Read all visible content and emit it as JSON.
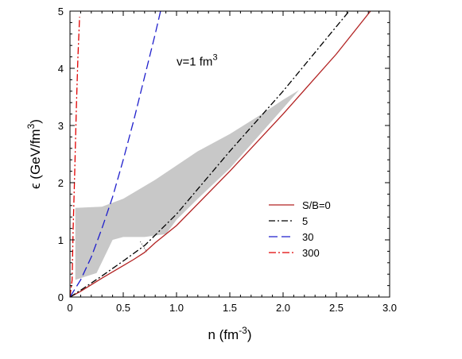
{
  "chart_data": {
    "type": "line",
    "xlabel": "n (fm",
    "xlabel_sup": "-3",
    "xlabel_end": ")",
    "ylabel": "ϵ (GeV/fm",
    "ylabel_sup": "3",
    "ylabel_end": ")",
    "xlim": [
      0,
      3.0
    ],
    "ylim": [
      0,
      5
    ],
    "x_ticks": [
      "0",
      "0.5",
      "1.0",
      "1.5",
      "2.0",
      "2.5",
      "3.0"
    ],
    "y_ticks": [
      "0",
      "1",
      "2",
      "3",
      "4",
      "5"
    ],
    "grid": false,
    "legend_position": "lower-right",
    "annotation": {
      "text": "v=1 fm",
      "sup": "3",
      "x": 1.0,
      "y": 4.05
    },
    "series": [
      {
        "name": "S/B=0",
        "color": "#b22222",
        "dash": "",
        "points": [
          [
            0,
            0
          ],
          [
            0.1,
            0.1
          ],
          [
            0.3,
            0.33
          ],
          [
            0.5,
            0.55
          ],
          [
            0.6,
            0.66
          ],
          [
            0.7,
            0.78
          ],
          [
            0.8,
            0.95
          ],
          [
            1.0,
            1.25
          ],
          [
            1.5,
            2.2
          ],
          [
            2.0,
            3.2
          ],
          [
            2.5,
            4.25
          ],
          [
            2.82,
            5.0
          ]
        ]
      },
      {
        "name": "5",
        "color": "#000000",
        "dash": "8,3,2,3",
        "points": [
          [
            0,
            0
          ],
          [
            0.1,
            0.12
          ],
          [
            0.3,
            0.37
          ],
          [
            0.5,
            0.63
          ],
          [
            0.7,
            0.9
          ],
          [
            1.0,
            1.45
          ],
          [
            1.5,
            2.55
          ],
          [
            2.0,
            3.6
          ],
          [
            2.5,
            4.73
          ],
          [
            2.62,
            5.0
          ]
        ]
      },
      {
        "name": "30",
        "color": "#1f1fcc",
        "dash": "11,5",
        "points": [
          [
            0,
            0
          ],
          [
            0.1,
            0.3
          ],
          [
            0.2,
            0.7
          ],
          [
            0.3,
            1.2
          ],
          [
            0.4,
            1.75
          ],
          [
            0.5,
            2.4
          ],
          [
            0.6,
            3.1
          ],
          [
            0.7,
            3.85
          ],
          [
            0.8,
            4.6
          ],
          [
            0.85,
            5.0
          ]
        ]
      },
      {
        "name": "300",
        "color": "#e00000",
        "dash": "9,3,2,3",
        "points": [
          [
            0,
            0
          ],
          [
            0.02,
            0.3
          ],
          [
            0.03,
            1.2
          ],
          [
            0.045,
            2.2
          ],
          [
            0.06,
            3.3
          ],
          [
            0.075,
            4.2
          ],
          [
            0.09,
            4.9
          ]
        ]
      }
    ],
    "shaded_region": {
      "color": "#c8c8c8",
      "upper": [
        [
          0.05,
          1.56
        ],
        [
          0.3,
          1.58
        ],
        [
          0.5,
          1.72
        ],
        [
          0.8,
          2.05
        ],
        [
          1.0,
          2.3
        ],
        [
          1.2,
          2.55
        ],
        [
          1.5,
          2.85
        ],
        [
          1.8,
          3.2
        ],
        [
          2.0,
          3.45
        ],
        [
          2.15,
          3.62
        ]
      ],
      "lower": [
        [
          2.15,
          3.62
        ],
        [
          2.0,
          3.3
        ],
        [
          1.8,
          2.88
        ],
        [
          1.6,
          2.46
        ],
        [
          1.5,
          2.25
        ],
        [
          1.2,
          1.72
        ],
        [
          1.0,
          1.35
        ],
        [
          0.9,
          1.1
        ],
        [
          0.7,
          1.05
        ],
        [
          0.5,
          1.05
        ],
        [
          0.4,
          1.0
        ],
        [
          0.25,
          0.42
        ],
        [
          0.05,
          0.3
        ]
      ]
    },
    "dotted_segment": {
      "color": "#333333",
      "points": [
        [
          0.66,
          0.97
        ],
        [
          0.69,
          0.88
        ],
        [
          0.72,
          0.79
        ]
      ]
    }
  }
}
